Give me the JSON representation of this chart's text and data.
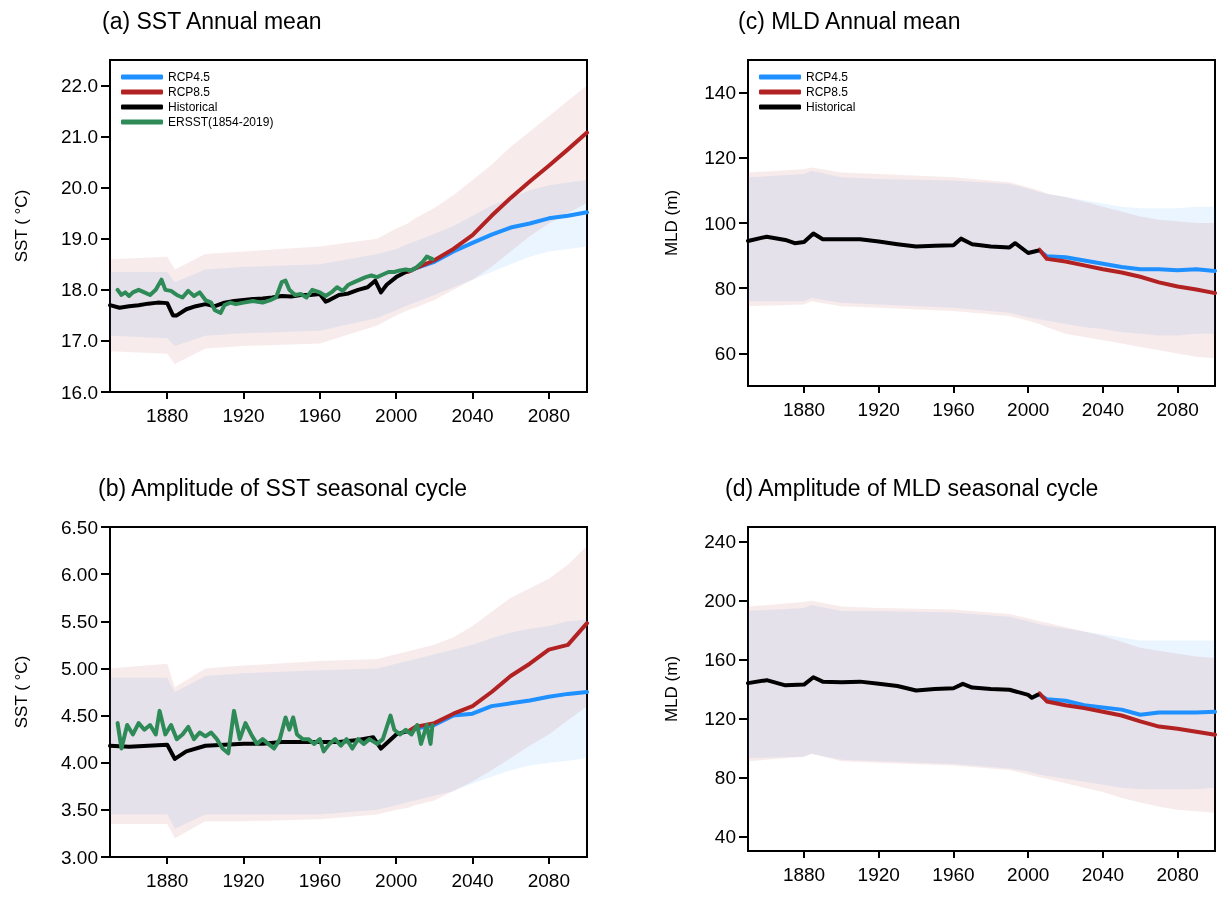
{
  "chart_data": [
    {
      "type": "line",
      "title": "(a) SST Annual mean",
      "ylabel": "SST ( °C)",
      "xlim": [
        1850,
        2100
      ],
      "xticks": [
        1880,
        1920,
        1960,
        2000,
        2040,
        2080
      ],
      "ylim": [
        16,
        22.5
      ],
      "yticks": [
        {
          "value": 16,
          "label": "16.0"
        },
        {
          "value": 17,
          "label": "17.0"
        },
        {
          "value": 18,
          "label": "18.0"
        },
        {
          "value": 19,
          "label": "19.0"
        },
        {
          "value": 20,
          "label": "20.0"
        },
        {
          "value": 21,
          "label": "21.0"
        },
        {
          "value": 22,
          "label": "22.0"
        }
      ],
      "legend": "top left",
      "series": [
        {
          "name": "RCP4.5",
          "color": "#1e90ff",
          "x": [
            1850,
            1880,
            1884,
            1900,
            1920,
            1960,
            1990,
            2000,
            2006,
            2010,
            2020,
            2030,
            2040,
            2050,
            2060,
            2070,
            2080,
            2090,
            2100
          ],
          "values": [
            null,
            null,
            null,
            null,
            null,
            null,
            null,
            null,
            18.35,
            18.42,
            18.55,
            18.75,
            18.92,
            19.08,
            19.22,
            19.3,
            19.4,
            19.45,
            19.52
          ],
          "upper": [
            18.35,
            18.35,
            18.15,
            18.4,
            18.45,
            18.5,
            18.7,
            18.8,
            18.9,
            18.95,
            19.1,
            19.25,
            19.45,
            19.65,
            19.8,
            19.95,
            20.05,
            20.1,
            20.15
          ],
          "lower": [
            17.1,
            17.05,
            16.9,
            17.1,
            17.15,
            17.2,
            17.45,
            17.6,
            17.7,
            17.75,
            17.9,
            18.05,
            18.2,
            18.35,
            18.5,
            18.65,
            18.75,
            18.8,
            18.85
          ]
        },
        {
          "name": "RCP8.5",
          "color": "#b22222",
          "x": [
            1850,
            1880,
            1884,
            1900,
            1920,
            1960,
            1990,
            2000,
            2006,
            2010,
            2020,
            2030,
            2040,
            2050,
            2060,
            2070,
            2080,
            2090,
            2100
          ],
          "values": [
            null,
            null,
            null,
            null,
            null,
            null,
            null,
            null,
            18.35,
            18.42,
            18.58,
            18.8,
            19.07,
            19.45,
            19.8,
            20.12,
            20.43,
            20.75,
            21.08
          ],
          "upper": [
            18.6,
            18.65,
            18.4,
            18.7,
            18.75,
            18.85,
            19.0,
            19.2,
            19.3,
            19.4,
            19.6,
            19.85,
            20.15,
            20.45,
            20.8,
            21.1,
            21.4,
            21.7,
            22.0
          ],
          "lower": [
            16.8,
            16.75,
            16.55,
            16.85,
            16.9,
            16.95,
            17.3,
            17.5,
            17.6,
            17.65,
            17.8,
            18.0,
            18.2,
            18.45,
            18.75,
            19.05,
            19.3,
            19.5,
            19.7
          ]
        },
        {
          "name": "Historical",
          "color": "#000000",
          "x": [
            1850,
            1855,
            1860,
            1865,
            1870,
            1875,
            1880,
            1883,
            1885,
            1890,
            1895,
            1900,
            1905,
            1910,
            1915,
            1920,
            1925,
            1930,
            1935,
            1940,
            1945,
            1950,
            1955,
            1960,
            1963,
            1965,
            1970,
            1975,
            1980,
            1985,
            1989,
            1992,
            1995,
            2000,
            2005
          ],
          "values": [
            17.7,
            17.65,
            17.68,
            17.7,
            17.73,
            17.75,
            17.74,
            17.5,
            17.5,
            17.62,
            17.68,
            17.72,
            17.68,
            17.75,
            17.78,
            17.8,
            17.82,
            17.83,
            17.85,
            17.88,
            17.87,
            17.9,
            17.9,
            17.92,
            17.77,
            17.8,
            17.9,
            17.93,
            18.0,
            18.05,
            18.18,
            17.95,
            18.1,
            18.25,
            18.35
          ]
        },
        {
          "name": "ERSST(1854-2019)",
          "color": "#2e8b57",
          "x": [
            1854,
            1856,
            1858,
            1860,
            1862,
            1865,
            1868,
            1871,
            1874,
            1877,
            1879,
            1882,
            1885,
            1888,
            1891,
            1894,
            1897,
            1900,
            1903,
            1905,
            1908,
            1910,
            1913,
            1916,
            1920,
            1925,
            1930,
            1934,
            1937,
            1940,
            1942,
            1944,
            1947,
            1950,
            1953,
            1956,
            1960,
            1963,
            1966,
            1969,
            1972,
            1975,
            1978,
            1981,
            1984,
            1987,
            1990,
            1993,
            1996,
            1999,
            2002,
            2005,
            2008,
            2011,
            2014,
            2016,
            2019
          ],
          "values": [
            18.0,
            17.9,
            17.95,
            17.88,
            17.95,
            18.0,
            17.95,
            17.9,
            18.0,
            18.2,
            18.0,
            17.98,
            17.9,
            17.85,
            17.98,
            17.88,
            17.95,
            17.8,
            17.75,
            17.6,
            17.55,
            17.7,
            17.75,
            17.72,
            17.75,
            17.78,
            17.75,
            17.8,
            17.85,
            18.15,
            18.18,
            18.0,
            17.9,
            17.92,
            17.85,
            18.0,
            17.95,
            17.88,
            17.95,
            18.05,
            17.98,
            18.1,
            18.15,
            18.2,
            18.25,
            18.28,
            18.25,
            18.3,
            18.35,
            18.35,
            18.38,
            18.4,
            18.38,
            18.45,
            18.55,
            18.65,
            18.6
          ]
        }
      ]
    },
    {
      "type": "line",
      "title": "(c) MLD Annual mean",
      "ylabel": "MLD (m)",
      "xlim": [
        1850,
        2100
      ],
      "xticks": [
        1880,
        1920,
        1960,
        2000,
        2040,
        2080
      ],
      "ylim": [
        50,
        150
      ],
      "yticks": [
        60,
        80,
        100,
        120,
        140
      ],
      "legend": "top left",
      "series": [
        {
          "name": "RCP4.5",
          "color": "#1e90ff",
          "x": [
            1850,
            1880,
            1884,
            1900,
            1920,
            1960,
            1990,
            2000,
            2006,
            2010,
            2020,
            2030,
            2040,
            2050,
            2060,
            2070,
            2080,
            2090,
            2100
          ],
          "values": [
            null,
            null,
            null,
            null,
            null,
            null,
            null,
            null,
            91.5,
            89.8,
            89.5,
            88.5,
            87.5,
            86.5,
            85.8,
            85.8,
            85.5,
            85.8,
            85.3
          ],
          "upper": [
            114,
            115,
            116,
            114,
            113.5,
            113,
            112,
            110.5,
            109.5,
            109,
            108,
            107,
            106,
            105,
            104.5,
            104.5,
            104.5,
            105,
            105
          ],
          "lower": [
            76,
            76,
            77,
            75.5,
            75,
            74,
            72.5,
            71,
            70.5,
            70,
            69,
            68,
            67.5,
            66.5,
            66,
            65.5,
            65.5,
            66,
            66
          ]
        },
        {
          "name": "RCP8.5",
          "color": "#b22222",
          "x": [
            1850,
            1880,
            1884,
            1900,
            1920,
            1960,
            1990,
            2000,
            2006,
            2010,
            2020,
            2030,
            2040,
            2050,
            2060,
            2070,
            2080,
            2090,
            2100
          ],
          "values": [
            null,
            null,
            null,
            null,
            null,
            null,
            null,
            null,
            91.8,
            89,
            88.2,
            87,
            85.8,
            84.8,
            83.5,
            81.8,
            80.5,
            79.6,
            78.5
          ],
          "upper": [
            115.5,
            116.5,
            117,
            115.5,
            115,
            114,
            112.5,
            111,
            110,
            109,
            108,
            106.5,
            105,
            103.5,
            102,
            101,
            100.5,
            100,
            100
          ],
          "lower": [
            74.5,
            75,
            76,
            74.5,
            74,
            73,
            71.5,
            70,
            69,
            68,
            66,
            65,
            64,
            63,
            62,
            61,
            60,
            59,
            58.5
          ]
        },
        {
          "name": "Historical",
          "color": "#000000",
          "x": [
            1850,
            1860,
            1870,
            1875,
            1880,
            1885,
            1890,
            1900,
            1910,
            1920,
            1930,
            1940,
            1950,
            1960,
            1964,
            1970,
            1980,
            1990,
            1993,
            2000,
            2005
          ],
          "values": [
            94.5,
            95.8,
            94.8,
            93.8,
            94.2,
            96.8,
            95,
            95,
            95,
            94.3,
            93.5,
            92.8,
            93,
            93.2,
            95.2,
            93.5,
            92.8,
            92.5,
            93.8,
            90.8,
            91.5
          ]
        }
      ]
    },
    {
      "type": "line",
      "title": "(b) Amplitude of SST seasonal cycle",
      "ylabel": "SST ( °C)",
      "xlim": [
        1850,
        2100
      ],
      "xticks": [
        1880,
        1920,
        1960,
        2000,
        2040,
        2080
      ],
      "ylim": [
        3,
        6.5
      ],
      "yticks": [
        {
          "value": 3,
          "label": "3.00"
        },
        {
          "value": 3.5,
          "label": "3.50"
        },
        {
          "value": 4,
          "label": "4.00"
        },
        {
          "value": 4.5,
          "label": "4.50"
        },
        {
          "value": 5,
          "label": "5.00"
        },
        {
          "value": 5.5,
          "label": "5.50"
        },
        {
          "value": 6,
          "label": "6.00"
        },
        {
          "value": 6.5,
          "label": "6.50"
        }
      ],
      "series": [
        {
          "color": "#1e90ff",
          "x": [
            1850,
            1880,
            1884,
            1900,
            1920,
            1960,
            1990,
            2000,
            2006,
            2010,
            2020,
            2030,
            2040,
            2050,
            2060,
            2070,
            2080,
            2090,
            2100
          ],
          "values": [
            null,
            null,
            null,
            null,
            null,
            null,
            null,
            null,
            4.33,
            4.36,
            4.4,
            4.5,
            4.52,
            4.6,
            4.63,
            4.66,
            4.7,
            4.73,
            4.75
          ],
          "upper": [
            4.9,
            4.9,
            4.75,
            4.92,
            4.95,
            4.98,
            5.0,
            5.05,
            5.08,
            5.1,
            5.15,
            5.2,
            5.25,
            5.32,
            5.38,
            5.42,
            5.45,
            5.5,
            5.52
          ],
          "lower": [
            3.45,
            3.45,
            3.3,
            3.45,
            3.45,
            3.45,
            3.5,
            3.55,
            3.58,
            3.6,
            3.65,
            3.7,
            3.78,
            3.85,
            3.92,
            3.97,
            4.0,
            4.02,
            4.05
          ]
        },
        {
          "color": "#b22222",
          "x": [
            1850,
            1880,
            1884,
            1900,
            1920,
            1960,
            1990,
            2000,
            2006,
            2010,
            2020,
            2030,
            2040,
            2050,
            2060,
            2070,
            2080,
            2090,
            2100
          ],
          "values": [
            null,
            null,
            null,
            null,
            null,
            null,
            null,
            null,
            4.33,
            4.38,
            4.42,
            4.52,
            4.6,
            4.75,
            4.92,
            5.05,
            5.2,
            5.25,
            5.48
          ],
          "upper": [
            5.0,
            5.05,
            4.8,
            5.0,
            5.03,
            5.08,
            5.1,
            5.15,
            5.18,
            5.2,
            5.25,
            5.33,
            5.45,
            5.6,
            5.75,
            5.85,
            5.95,
            6.1,
            6.3
          ],
          "lower": [
            3.35,
            3.35,
            3.2,
            3.38,
            3.38,
            3.4,
            3.45,
            3.5,
            3.52,
            3.55,
            3.6,
            3.7,
            3.8,
            3.92,
            4.05,
            4.18,
            4.3,
            4.45,
            4.6
          ]
        },
        {
          "color": "#000000",
          "x": [
            1850,
            1860,
            1870,
            1880,
            1884,
            1890,
            1900,
            1910,
            1920,
            1930,
            1940,
            1950,
            1960,
            1970,
            1980,
            1988,
            1992,
            2000,
            2005
          ],
          "values": [
            4.18,
            4.17,
            4.18,
            4.19,
            4.04,
            4.12,
            4.18,
            4.19,
            4.2,
            4.2,
            4.22,
            4.22,
            4.22,
            4.22,
            4.24,
            4.27,
            4.15,
            4.3,
            4.33
          ]
        },
        {
          "color": "#2e8b57",
          "x": [
            1854,
            1856,
            1859,
            1862,
            1865,
            1868,
            1871,
            1874,
            1876,
            1879,
            1882,
            1885,
            1888,
            1891,
            1894,
            1897,
            1900,
            1903,
            1906,
            1909,
            1912,
            1915,
            1918,
            1921,
            1924,
            1927,
            1930,
            1933,
            1936,
            1939,
            1942,
            1944,
            1946,
            1948,
            1951,
            1954,
            1957,
            1960,
            1962,
            1965,
            1968,
            1971,
            1974,
            1977,
            1980,
            1983,
            1986,
            1990,
            1993,
            1997,
            1999,
            2002,
            2005,
            2008,
            2011,
            2013,
            2016,
            2018,
            2019
          ],
          "values": [
            4.42,
            4.15,
            4.4,
            4.3,
            4.42,
            4.35,
            4.4,
            4.3,
            4.55,
            4.3,
            4.4,
            4.25,
            4.3,
            4.38,
            4.25,
            4.32,
            4.28,
            4.32,
            4.25,
            4.15,
            4.1,
            4.55,
            4.25,
            4.42,
            4.3,
            4.2,
            4.25,
            4.2,
            4.15,
            4.25,
            4.48,
            4.35,
            4.48,
            4.3,
            4.25,
            4.25,
            4.2,
            4.25,
            4.12,
            4.2,
            4.25,
            4.18,
            4.25,
            4.15,
            4.25,
            4.2,
            4.25,
            4.2,
            4.25,
            4.5,
            4.35,
            4.3,
            4.35,
            4.3,
            4.4,
            4.2,
            4.4,
            4.2,
            4.4
          ]
        }
      ]
    },
    {
      "type": "line",
      "title": "(d) Amplitude of MLD seasonal cycle",
      "ylabel": "MLD (m)",
      "xlim": [
        1850,
        2100
      ],
      "xticks": [
        1880,
        1920,
        1960,
        2000,
        2040,
        2080
      ],
      "ylim": [
        30,
        250
      ],
      "yticks": [
        40,
        80,
        120,
        160,
        200,
        240
      ],
      "series": [
        {
          "color": "#1e90ff",
          "x": [
            1850,
            1880,
            1884,
            1900,
            1920,
            1960,
            1990,
            2000,
            2006,
            2010,
            2020,
            2030,
            2040,
            2050,
            2060,
            2070,
            2080,
            2090,
            2100
          ],
          "values": [
            null,
            null,
            null,
            null,
            null,
            null,
            null,
            null,
            136,
            133,
            132,
            129,
            127.5,
            126,
            122.5,
            124,
            124,
            124,
            124.5
          ],
          "upper": [
            193,
            195,
            197,
            193,
            193,
            192,
            189,
            186,
            184,
            183,
            181,
            179,
            177,
            175,
            173,
            173,
            173,
            173,
            173
          ],
          "lower": [
            93,
            94,
            96,
            92,
            91,
            89,
            86,
            84,
            82,
            81,
            79,
            77,
            75,
            73,
            72,
            72,
            72,
            72,
            73
          ]
        },
        {
          "color": "#b22222",
          "x": [
            1850,
            1880,
            1884,
            1900,
            1920,
            1960,
            1990,
            2000,
            2006,
            2010,
            2020,
            2030,
            2040,
            2050,
            2060,
            2070,
            2080,
            2090,
            2100
          ],
          "values": [
            null,
            null,
            null,
            null,
            null,
            null,
            null,
            null,
            137,
            131.5,
            129,
            127,
            124.5,
            122,
            118,
            114.5,
            113,
            111,
            109
          ],
          "upper": [
            196,
            199,
            200,
            196,
            195,
            194,
            191,
            188,
            186,
            185,
            182,
            179,
            176,
            172,
            168,
            166,
            164,
            162,
            161
          ],
          "lower": [
            91,
            94,
            96,
            91,
            90,
            88,
            85,
            82,
            80,
            79,
            76,
            73,
            70,
            66,
            63,
            60,
            58,
            57,
            56
          ]
        },
        {
          "color": "#000000",
          "x": [
            1850,
            1860,
            1870,
            1880,
            1885,
            1890,
            1900,
            1910,
            1920,
            1930,
            1940,
            1950,
            1960,
            1965,
            1970,
            1980,
            1990,
            2000,
            2002,
            2005
          ],
          "values": [
            144,
            146,
            142.5,
            143,
            148,
            145,
            144.5,
            145,
            143.5,
            142,
            139,
            140,
            140.5,
            143.5,
            141,
            140,
            139.5,
            136,
            134,
            136
          ]
        }
      ]
    }
  ]
}
